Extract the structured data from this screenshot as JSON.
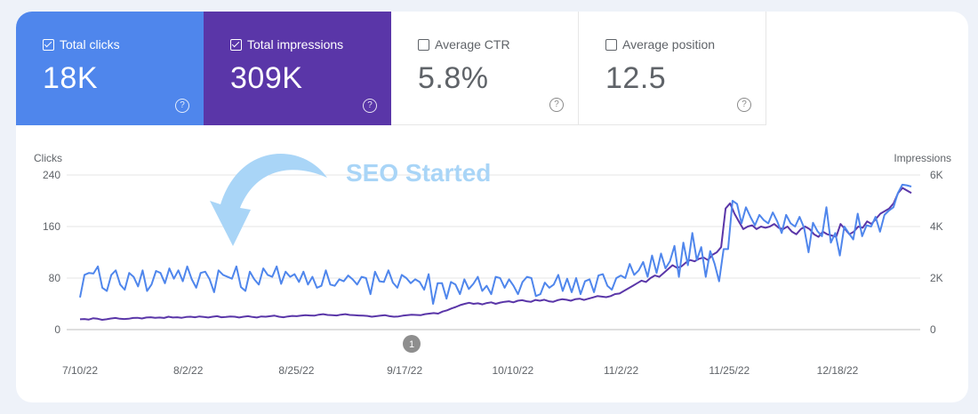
{
  "metrics": [
    {
      "label": "Total clicks",
      "value": "18K",
      "checked": true
    },
    {
      "label": "Total impressions",
      "value": "309K",
      "checked": true
    },
    {
      "label": "Average CTR",
      "value": "5.8%",
      "checked": false
    },
    {
      "label": "Average position",
      "value": "12.5",
      "checked": false
    }
  ],
  "help_glyph": "?",
  "annotation": {
    "text": "SEO Started",
    "marker": "1"
  },
  "colors": {
    "clicks": "#4f86ec",
    "impressions": "#5a36a8",
    "annotation": "#a9d5f7",
    "background": "#eef2f9"
  },
  "chart_data": {
    "type": "line",
    "x_ticks": [
      "7/10/22",
      "8/2/22",
      "8/25/22",
      "9/17/22",
      "10/10/22",
      "11/2/22",
      "11/25/22",
      "12/18/22"
    ],
    "left_axis": {
      "label": "Clicks",
      "ticks": [
        "0",
        "80",
        "160",
        "240"
      ],
      "range": [
        0,
        240
      ]
    },
    "right_axis": {
      "label": "Impressions",
      "ticks": [
        "0",
        "2K",
        "4K",
        "6K"
      ],
      "range": [
        0,
        6000
      ]
    },
    "grid": true,
    "series": [
      {
        "name": "Clicks",
        "axis": "left",
        "values": [
          50,
          85,
          88,
          87,
          98,
          65,
          60,
          85,
          92,
          70,
          62,
          88,
          82,
          67,
          92,
          60,
          70,
          91,
          88,
          72,
          95,
          79,
          92,
          75,
          98,
          78,
          65,
          88,
          90,
          78,
          58,
          92,
          85,
          82,
          79,
          98,
          66,
          60,
          90,
          78,
          70,
          95,
          85,
          82,
          98,
          71,
          90,
          82,
          86,
          74,
          90,
          70,
          82,
          65,
          68,
          92,
          70,
          68,
          78,
          75,
          84,
          78,
          70,
          82,
          80,
          55,
          90,
          75,
          74,
          92,
          73,
          65,
          85,
          80,
          72,
          78,
          74,
          62,
          86,
          40,
          72,
          72,
          48,
          74,
          70,
          55,
          78,
          63,
          71,
          82,
          60,
          68,
          55,
          82,
          80,
          65,
          78,
          68,
          55,
          74,
          82,
          80,
          52,
          55,
          73,
          65,
          70,
          85,
          60,
          79,
          58,
          80,
          55,
          75,
          78,
          58,
          84,
          86,
          68,
          62,
          80,
          84,
          80,
          102,
          85,
          92,
          105,
          82,
          115,
          88,
          118,
          95,
          106,
          130,
          82,
          135,
          100,
          150,
          108,
          128,
          82,
          122,
          102,
          75,
          125,
          125,
          200,
          195,
          165,
          190,
          175,
          162,
          178,
          170,
          165,
          182,
          168,
          150,
          178,
          165,
          160,
          175,
          158,
          120,
          166,
          153,
          145,
          190,
          135,
          150,
          115,
          160,
          150,
          140,
          180,
          145,
          162,
          160,
          175,
          152,
          178,
          185,
          190,
          212,
          225,
          224,
          222
        ],
        "scale_note": "clicks"
      },
      {
        "name": "Impressions",
        "axis": "right",
        "values": [
          400,
          410,
          390,
          440,
          420,
          380,
          400,
          430,
          450,
          420,
          410,
          420,
          450,
          460,
          430,
          470,
          480,
          460,
          470,
          450,
          500,
          470,
          480,
          460,
          490,
          500,
          480,
          510,
          490,
          470,
          500,
          520,
          480,
          490,
          510,
          500,
          470,
          500,
          520,
          490,
          470,
          510,
          500,
          520,
          540,
          500,
          480,
          510,
          530,
          520,
          540,
          560,
          550,
          540,
          580,
          600,
          570,
          560,
          550,
          580,
          600,
          570,
          560,
          550,
          540,
          530,
          500,
          520,
          540,
          560,
          520,
          500,
          510,
          540,
          560,
          580,
          570,
          560,
          600,
          620,
          640,
          620,
          700,
          750,
          820,
          880,
          950,
          1000,
          1040,
          1000,
          1020,
          980,
          1030,
          1060,
          1000,
          1050,
          1080,
          1100,
          1060,
          1120,
          1140,
          1100,
          1080,
          1150,
          1120,
          1160,
          1100,
          1080,
          1140,
          1180,
          1160,
          1120,
          1180,
          1200,
          1150,
          1200,
          1250,
          1300,
          1280,
          1260,
          1300,
          1380,
          1400,
          1500,
          1600,
          1700,
          1800,
          1900,
          1850,
          2000,
          2100,
          2050,
          2200,
          2350,
          2500,
          2400,
          2450,
          2600,
          2700,
          2650,
          2750,
          2800,
          2700,
          2900,
          3000,
          3200,
          4700,
          4900,
          4500,
          4200,
          3900,
          4000,
          4050,
          3900,
          4000,
          3950,
          4000,
          4100,
          3950,
          3900,
          4000,
          3800,
          3700,
          3900,
          4000,
          3900,
          3700,
          3600,
          3800,
          3700,
          3650,
          3600,
          4100,
          3900,
          3700,
          3800,
          4000,
          3950,
          4200,
          4100,
          4300,
          4500,
          4600,
          4700,
          4900,
          5300,
          5500,
          5400,
          5300
        ]
      }
    ],
    "annotation_index": 80,
    "arrow_note": "SEO Started"
  }
}
